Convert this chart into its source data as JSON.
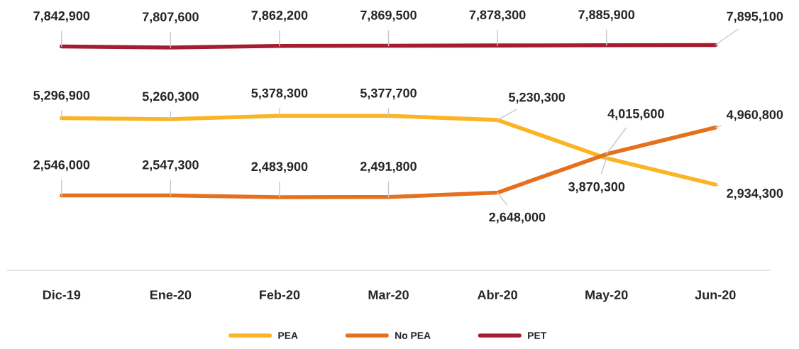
{
  "chart_data": {
    "type": "line",
    "categories": [
      "Dic-19",
      "Ene-20",
      "Feb-20",
      "Mar-20",
      "Abr-20",
      "May-20",
      "Jun-20"
    ],
    "series": [
      {
        "name": "PEA",
        "color": "#fbb424",
        "values": [
          5296900,
          5260300,
          5378300,
          5377700,
          5230300,
          3870300,
          2934300
        ],
        "value_labels": [
          "5,296,900",
          "5,260,300",
          "5,378,300",
          "5,377,700",
          "5,230,300",
          "3,870,300",
          "2,934,300"
        ]
      },
      {
        "name": "No PEA",
        "color": "#e5711f",
        "values": [
          2546000,
          2547300,
          2483900,
          2491800,
          2648000,
          4015600,
          4960800
        ],
        "value_labels": [
          "2,546,000",
          "2,547,300",
          "2,483,900",
          "2,491,800",
          "2,648,000",
          "4,015,600",
          "4,960,800"
        ]
      },
      {
        "name": "PET",
        "color": "#a51c30",
        "values": [
          7842900,
          7807600,
          7862200,
          7869500,
          7878300,
          7885900,
          7895100
        ],
        "value_labels": [
          "7,842,900",
          "7,807,600",
          "7,862,200",
          "7,869,500",
          "7,878,300",
          "7,885,900",
          "7,895,100"
        ]
      }
    ],
    "tick_labels": "x",
    "grid": false,
    "legend": "bottom",
    "marker": "none",
    "line_style": "solid"
  }
}
